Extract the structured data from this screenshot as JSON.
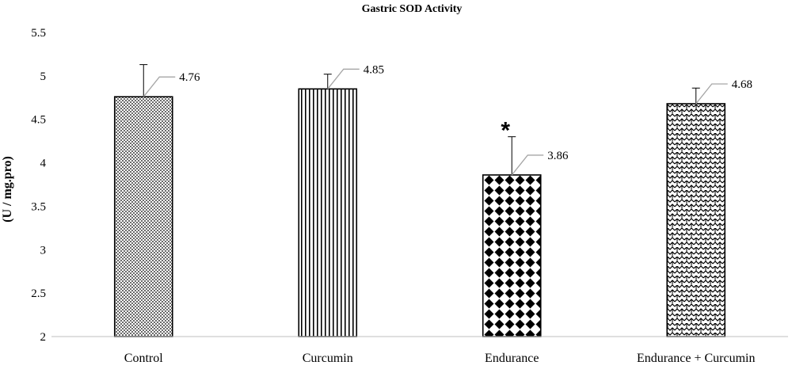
{
  "chart_data": {
    "type": "bar",
    "title": "Gastric SOD Activity",
    "xlabel": "",
    "ylabel": "(U / mg.pro)",
    "ylim": [
      2,
      5.5
    ],
    "yticks": [
      "2",
      "2.5",
      "3",
      "3.5",
      "4",
      "4.5",
      "5",
      "5.5"
    ],
    "categories": [
      "Control",
      "Curcumin",
      "Endurance",
      "Endurance + Curcumin"
    ],
    "values": [
      4.76,
      4.85,
      3.86,
      4.68
    ],
    "error_upper": [
      5.13,
      5.02,
      4.3,
      4.86
    ],
    "data_labels": [
      "4.76",
      "4.85",
      "3.86",
      "4.68"
    ],
    "patterns": [
      "dots",
      "vertical-lines",
      "diamonds",
      "zigzag"
    ],
    "annotations": [
      {
        "category": "Endurance",
        "text": "*"
      }
    ],
    "grid": false,
    "legend": "none"
  }
}
